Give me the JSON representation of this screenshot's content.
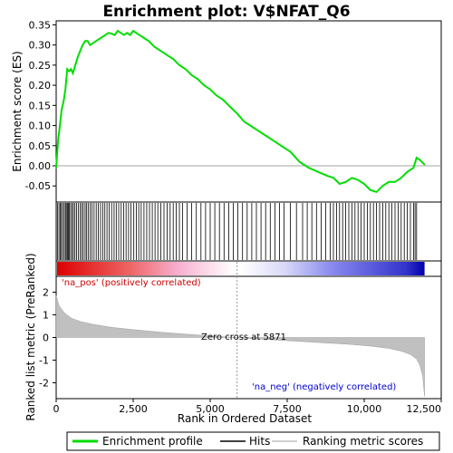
{
  "chart_data": {
    "type": "line",
    "title": "Enrichment plot: V$NFAT_Q6",
    "top_panel": {
      "ylabel": "Enrichment score (ES)",
      "ylim": [
        -0.09,
        0.36
      ],
      "yticks": [
        -0.05,
        0.0,
        0.05,
        0.1,
        0.15,
        0.2,
        0.25,
        0.3,
        0.35
      ],
      "ytick_labels": [
        "-0.05",
        "0.00",
        "0.05",
        "0.10",
        "0.15",
        "0.20",
        "0.25",
        "0.30",
        "0.35"
      ],
      "line_color": "#00dd00",
      "series": [
        {
          "name": "Enrichment profile",
          "x": [
            0,
            60,
            120,
            180,
            240,
            300,
            360,
            420,
            480,
            540,
            620,
            700,
            780,
            860,
            940,
            1020,
            1100,
            1200,
            1300,
            1400,
            1500,
            1600,
            1700,
            1800,
            1900,
            2000,
            2100,
            2200,
            2300,
            2400,
            2500,
            2600,
            2700,
            2800,
            2900,
            3000,
            3200,
            3400,
            3600,
            3800,
            4000,
            4200,
            4400,
            4600,
            4800,
            5000,
            5200,
            5400,
            5600,
            5871,
            6100,
            6400,
            6700,
            7000,
            7300,
            7600,
            7900,
            8200,
            8500,
            8800,
            9000,
            9200,
            9400,
            9600,
            9800,
            10000,
            10200,
            10400,
            10600,
            10800,
            11000,
            11200,
            11400,
            11600,
            11700,
            11800,
            11960
          ],
          "y": [
            -0.005,
            0.06,
            0.1,
            0.14,
            0.16,
            0.19,
            0.24,
            0.235,
            0.24,
            0.23,
            0.25,
            0.27,
            0.285,
            0.3,
            0.31,
            0.31,
            0.3,
            0.305,
            0.31,
            0.315,
            0.32,
            0.325,
            0.33,
            0.328,
            0.325,
            0.335,
            0.33,
            0.325,
            0.33,
            0.325,
            0.335,
            0.33,
            0.325,
            0.32,
            0.315,
            0.31,
            0.295,
            0.285,
            0.275,
            0.265,
            0.25,
            0.24,
            0.225,
            0.215,
            0.2,
            0.19,
            0.175,
            0.165,
            0.15,
            0.13,
            0.11,
            0.095,
            0.08,
            0.065,
            0.05,
            0.035,
            0.01,
            -0.005,
            -0.015,
            -0.025,
            -0.03,
            -0.045,
            -0.04,
            -0.03,
            -0.035,
            -0.045,
            -0.06,
            -0.065,
            -0.05,
            -0.04,
            -0.04,
            -0.03,
            -0.015,
            -0.005,
            0.02,
            0.015,
            0.003
          ]
        }
      ]
    },
    "hits_panel": {
      "hit_color": "#000000",
      "hit_positions": [
        40,
        90,
        130,
        170,
        210,
        260,
        300,
        330,
        370,
        400,
        430,
        470,
        520,
        560,
        610,
        660,
        720,
        780,
        830,
        880,
        940,
        990,
        1040,
        1100,
        1160,
        1230,
        1300,
        1370,
        1440,
        1510,
        1580,
        1650,
        1720,
        1800,
        1880,
        1950,
        2030,
        2110,
        2190,
        2270,
        2350,
        2430,
        2520,
        2600,
        2680,
        2760,
        2850,
        2940,
        3030,
        3120,
        3210,
        3300,
        3400,
        3500,
        3600,
        3700,
        3800,
        3900,
        4000,
        4100,
        4250,
        4400,
        4550,
        4700,
        4850,
        5000,
        5150,
        5300,
        5450,
        5600,
        5750,
        5900,
        6050,
        6200,
        6350,
        6500,
        6650,
        6800,
        6950,
        7100,
        7250,
        7400,
        7600,
        7800,
        8000,
        8150,
        8300,
        8450,
        8600,
        8750,
        8900,
        9000,
        9100,
        9200,
        9300,
        9400,
        9500,
        9600,
        9700,
        9800,
        9900,
        10000,
        10100,
        10200,
        10300,
        10400,
        10500,
        10600,
        10700,
        10800,
        10900,
        11000,
        11100,
        11200,
        11300,
        11400,
        11500,
        11600,
        11650,
        11700
      ]
    },
    "metric_panel": {
      "ylabel": "Ranked list metric (PreRanked)",
      "xlabel": "Rank in Ordered Dataset",
      "ylim": [
        -2.7,
        2.7
      ],
      "yticks": [
        -2,
        -1,
        0,
        1,
        2
      ],
      "ytick_labels": [
        "-2",
        "-1",
        "0",
        "1",
        "2"
      ],
      "xlim": [
        0,
        12500
      ],
      "xticks": [
        0,
        2500,
        5000,
        7500,
        10000,
        12500
      ],
      "xtick_labels": [
        "0",
        "2,500",
        "5,000",
        "7,500",
        "10,000",
        "12,500"
      ],
      "fill_color": "#c0c0c0",
      "zero_cross": 5871,
      "zero_cross_label": "Zero cross at 5871",
      "pos_label": "'na_pos' (positively correlated)",
      "neg_label": "'na_neg' (negatively correlated)",
      "curve_x": [
        0,
        50,
        100,
        200,
        300,
        500,
        800,
        1200,
        1800,
        2500,
        3500,
        4500,
        5200,
        5871,
        6500,
        7500,
        8500,
        9500,
        10200,
        10800,
        11200,
        11500,
        11700,
        11800,
        11900,
        11960
      ],
      "curve_y": [
        1.85,
        1.6,
        1.4,
        1.2,
        1.05,
        0.85,
        0.7,
        0.58,
        0.45,
        0.35,
        0.22,
        0.12,
        0.05,
        0.0,
        -0.06,
        -0.14,
        -0.22,
        -0.3,
        -0.38,
        -0.48,
        -0.6,
        -0.75,
        -0.95,
        -1.2,
        -1.7,
        -2.6
      ]
    },
    "legend": {
      "entries": [
        {
          "label": "Enrichment profile",
          "color": "#00dd00"
        },
        {
          "label": "Hits",
          "color": "#000000"
        },
        {
          "label": "Ranking metric scores",
          "color": "#c0c0c0"
        }
      ]
    }
  }
}
